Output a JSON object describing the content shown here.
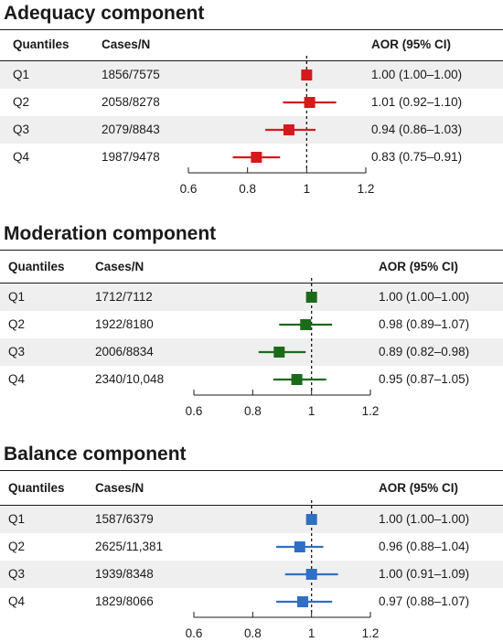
{
  "chart_data": [
    {
      "type": "forest",
      "title": "Adequacy component",
      "columns": [
        "Quantiles",
        "Cases/N",
        "AOR (95% CI)"
      ],
      "rows": [
        {
          "quantile": "Q1",
          "cases": "1856/7575",
          "aor": 1.0,
          "lo": 1.0,
          "hi": 1.0,
          "label": "1.00 (1.00–1.00)"
        },
        {
          "quantile": "Q2",
          "cases": "2058/8278",
          "aor": 1.01,
          "lo": 0.92,
          "hi": 1.1,
          "label": "1.01 (0.92–1.10)"
        },
        {
          "quantile": "Q3",
          "cases": "2079/8843",
          "aor": 0.94,
          "lo": 0.86,
          "hi": 1.03,
          "label": "0.94 (0.86–1.03)"
        },
        {
          "quantile": "Q4",
          "cases": "1987/9478",
          "aor": 0.83,
          "lo": 0.75,
          "hi": 0.91,
          "label": "0.83 (0.75–0.91)"
        }
      ],
      "xlim": [
        0.6,
        1.2
      ],
      "xticks": [
        "0.6",
        "0.8",
        "1",
        "1.2"
      ],
      "reference": 1,
      "color": "#d7191c"
    },
    {
      "type": "forest",
      "title": "Moderation component",
      "columns": [
        "Quantiles",
        "Cases/N",
        "AOR (95% CI)"
      ],
      "rows": [
        {
          "quantile": "Q1",
          "cases": "1712/7112",
          "aor": 1.0,
          "lo": 1.0,
          "hi": 1.0,
          "label": "1.00 (1.00–1.00)"
        },
        {
          "quantile": "Q2",
          "cases": "1922/8180",
          "aor": 0.98,
          "lo": 0.89,
          "hi": 1.07,
          "label": "0.98 (0.89–1.07)"
        },
        {
          "quantile": "Q3",
          "cases": "2006/8834",
          "aor": 0.89,
          "lo": 0.82,
          "hi": 0.98,
          "label": "0.89 (0.82–0.98)"
        },
        {
          "quantile": "Q4",
          "cases": "2340/10,048",
          "aor": 0.95,
          "lo": 0.87,
          "hi": 1.05,
          "label": "0.95 (0.87–1.05)"
        }
      ],
      "xlim": [
        0.6,
        1.2
      ],
      "xticks": [
        "0.6",
        "0.8",
        "1",
        "1.2"
      ],
      "reference": 1,
      "color": "#1b6b1b"
    },
    {
      "type": "forest",
      "title": "Balance component",
      "columns": [
        "Quantiles",
        "Cases/N",
        "AOR (95% CI)"
      ],
      "rows": [
        {
          "quantile": "Q1",
          "cases": "1587/6379",
          "aor": 1.0,
          "lo": 1.0,
          "hi": 1.0,
          "label": "1.00 (1.00–1.00)"
        },
        {
          "quantile": "Q2",
          "cases": "2625/11,381",
          "aor": 0.96,
          "lo": 0.88,
          "hi": 1.04,
          "label": "0.96 (0.88–1.04)"
        },
        {
          "quantile": "Q3",
          "cases": "1939/8348",
          "aor": 1.0,
          "lo": 0.91,
          "hi": 1.09,
          "label": "1.00 (0.91–1.09)"
        },
        {
          "quantile": "Q4",
          "cases": "1829/8066",
          "aor": 0.97,
          "lo": 0.88,
          "hi": 1.07,
          "label": "0.97 (0.88–1.07)"
        }
      ],
      "xlim": [
        0.6,
        1.2
      ],
      "xticks": [
        "0.6",
        "0.8",
        "1",
        "1.2"
      ],
      "reference": 1,
      "color": "#2f6fc4"
    }
  ]
}
